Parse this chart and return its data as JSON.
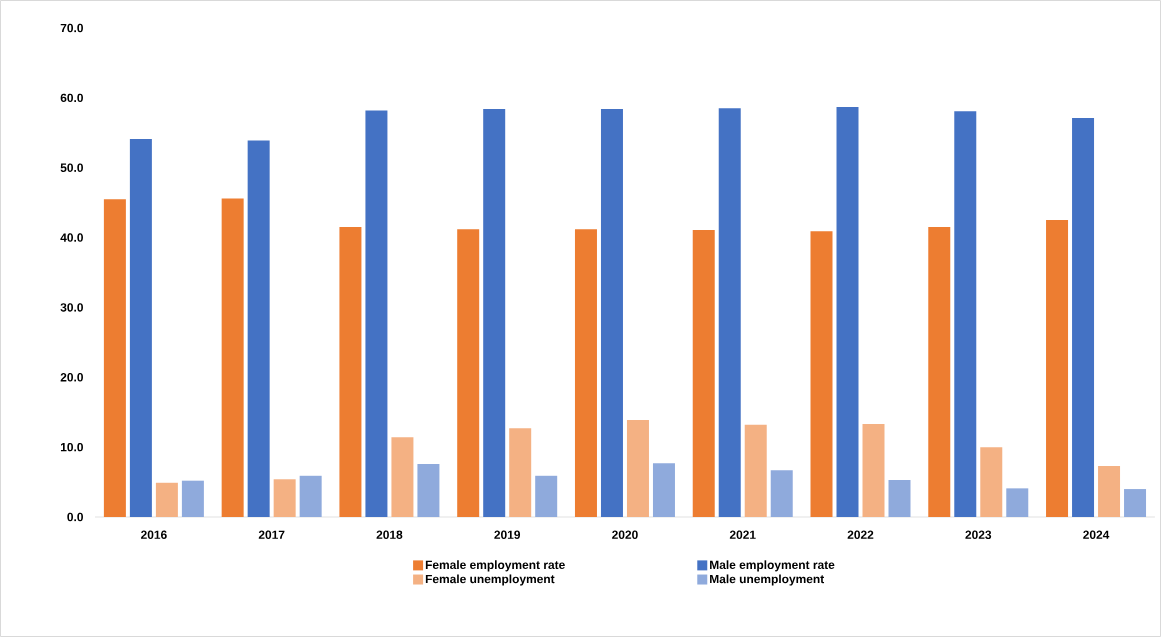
{
  "chart_data": {
    "type": "bar",
    "categories": [
      "2016",
      "2017",
      "2018",
      "2019",
      "2020",
      "2021",
      "2022",
      "2023",
      "2024"
    ],
    "series": [
      {
        "name": "Female employment rate",
        "color": "#ed7d31",
        "values": [
          45.5,
          45.6,
          41.5,
          41.2,
          41.2,
          41.1,
          40.9,
          41.5,
          42.5
        ]
      },
      {
        "name": "Male employment rate",
        "color": "#4472c4",
        "values": [
          54.1,
          53.9,
          58.2,
          58.4,
          58.4,
          58.5,
          58.7,
          58.1,
          57.1
        ]
      },
      {
        "name": "Female unemployment",
        "color": "#f4b183",
        "values": [
          4.9,
          5.4,
          11.4,
          12.7,
          13.9,
          13.2,
          13.3,
          10.0,
          7.3
        ]
      },
      {
        "name": "Male unemployment",
        "color": "#8faadc",
        "values": [
          5.2,
          5.9,
          7.6,
          5.9,
          7.7,
          6.7,
          5.3,
          4.1,
          4.0
        ]
      }
    ],
    "ylim": [
      0,
      70
    ],
    "yticks": [
      {
        "value": 0,
        "label": "0.0"
      },
      {
        "value": 10,
        "label": "10.0"
      },
      {
        "value": 20,
        "label": "20.0"
      },
      {
        "value": 30,
        "label": "30.0"
      },
      {
        "value": 40,
        "label": "40.0"
      },
      {
        "value": 50,
        "label": "50.0"
      },
      {
        "value": 60,
        "label": "60.0"
      },
      {
        "value": 70,
        "label": "70.0"
      }
    ],
    "grid": false,
    "legend": "bottom"
  }
}
